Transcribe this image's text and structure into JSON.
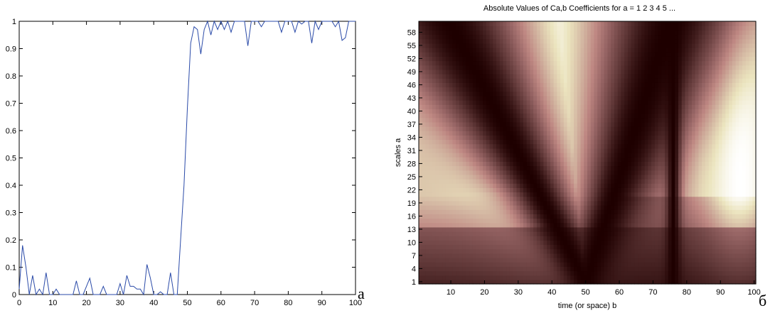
{
  "chart_data": [
    {
      "type": "line",
      "panel_letter": "а",
      "title": "",
      "xlabel": "",
      "ylabel": "",
      "xlim": [
        0,
        100
      ],
      "ylim": [
        0,
        1
      ],
      "x_ticks": [
        "0",
        "10",
        "20",
        "30",
        "40",
        "50",
        "60",
        "70",
        "80",
        "90",
        "100"
      ],
      "y_ticks": [
        "0",
        "0.1",
        "0.2",
        "0.3",
        "0.4",
        "0.5",
        "0.6",
        "0.7",
        "0.8",
        "0.9",
        "1"
      ],
      "grid": false,
      "line_color": "#2a4aa8",
      "series": [
        {
          "x": [
            0,
            1,
            2,
            3,
            4,
            5,
            6,
            7,
            8,
            9,
            10,
            11,
            12,
            13,
            14,
            15,
            16,
            17,
            18,
            19,
            20,
            21,
            22,
            23,
            24,
            25,
            26,
            27,
            28,
            29,
            30,
            31,
            32,
            33,
            34,
            35,
            36,
            37,
            38,
            39,
            40,
            41,
            42,
            43,
            44,
            45,
            46,
            47,
            48,
            49,
            50,
            51,
            52,
            53,
            54,
            55,
            56,
            57,
            58,
            59,
            60,
            61,
            62,
            63,
            64,
            65,
            66,
            67,
            68,
            69,
            70,
            71,
            72,
            73,
            74,
            75,
            76,
            77,
            78,
            79,
            80,
            81,
            82,
            83,
            84,
            85,
            86,
            87,
            88,
            89,
            90,
            91,
            92,
            93,
            94,
            95,
            96,
            97,
            98,
            99,
            100
          ],
          "y": [
            0.02,
            0.18,
            0.1,
            0.0,
            0.07,
            0.0,
            0.02,
            0.0,
            0.08,
            0.0,
            0.0,
            0.02,
            0.0,
            0.0,
            0.0,
            0.0,
            0.0,
            0.05,
            0.0,
            0.0,
            0.03,
            0.06,
            0.0,
            0.0,
            0.0,
            0.03,
            0.0,
            0.0,
            0.0,
            0.0,
            0.04,
            0.0,
            0.07,
            0.03,
            0.03,
            0.02,
            0.02,
            0.0,
            0.11,
            0.06,
            0.0,
            0.0,
            0.01,
            0.0,
            0.0,
            0.08,
            0.0,
            0.0,
            0.2,
            0.4,
            0.68,
            0.92,
            0.98,
            0.97,
            0.88,
            0.97,
            1.0,
            0.95,
            1.0,
            0.97,
            1.0,
            0.97,
            1.0,
            0.96,
            1.0,
            1.0,
            1.0,
            1.0,
            0.91,
            1.0,
            1.0,
            1.0,
            0.98,
            1.0,
            1.0,
            1.0,
            1.0,
            1.0,
            0.96,
            1.0,
            1.0,
            1.0,
            0.96,
            1.0,
            0.99,
            1.0,
            1.0,
            0.92,
            1.0,
            0.97,
            1.0,
            1.0,
            1.0,
            1.0,
            0.98,
            1.0,
            0.93,
            0.94,
            1.0,
            1.0,
            1.0
          ]
        }
      ]
    },
    {
      "type": "heatmap",
      "panel_letter": "б",
      "title": "Absolute Values of Ca,b Coefficients for a =  1 2 3 4 5 ...",
      "xlabel": "time (or space) b",
      "ylabel": "scales a",
      "xlim": [
        1,
        100
      ],
      "ylim": [
        1,
        60
      ],
      "x_ticks": [
        "10",
        "20",
        "30",
        "40",
        "50",
        "60",
        "70",
        "80",
        "90",
        "100"
      ],
      "y_ticks": [
        "1",
        "4",
        "7",
        "10",
        "13",
        "16",
        "19",
        "22",
        "25",
        "28",
        "31",
        "34",
        "37",
        "40",
        "43",
        "46",
        "49",
        "52",
        "55",
        "58"
      ],
      "colormap": "pink",
      "description_of_values": "low along a V from b≈50 at a=1 rising to b≈10 and b≈75 at high scales; dark vertical band at b≈75-77; bright maxima near b≈40 and b≈95 at high scales"
    }
  ]
}
